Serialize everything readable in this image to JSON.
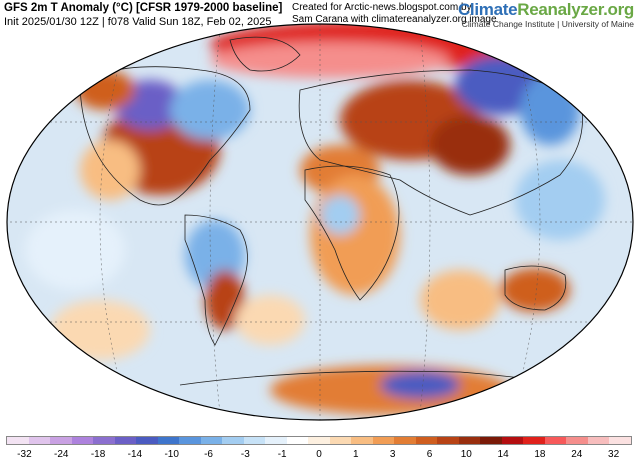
{
  "header": {
    "title": "GFS 2m T Anomaly (°C) [CFSR 1979-2000 baseline]",
    "subtitle": "Init 2025/01/30 12Z | f078 Valid Sun 18Z, Feb 02, 2025"
  },
  "credit": {
    "line1": "Created for Arctic-news.blogspot.com by",
    "line2": "Sam Carana with climatereanalyzer.org image"
  },
  "brand": {
    "name_part1": "Climate",
    "name_part2": "Reanalyzer.org",
    "subtitle": "Climate Change Institute | University of Maine"
  },
  "colorbar": {
    "colors": [
      "#f3e3f3",
      "#e0c4ec",
      "#c9a1e3",
      "#ad82dd",
      "#8b6fcf",
      "#6b5fc6",
      "#4b5bc1",
      "#3e75cc",
      "#5a95dd",
      "#7ab1e8",
      "#a3cdf1",
      "#c7e2f7",
      "#e5f1fb",
      "#ffffff",
      "#fdf0e0",
      "#fbd9b2",
      "#f8bd82",
      "#f19d55",
      "#e27d34",
      "#cf5e1f",
      "#b84315",
      "#992e0e",
      "#7a1a08",
      "#b40e10",
      "#e0211b",
      "#f7595a",
      "#f58e8c",
      "#f7bdbd",
      "#fbe1e1"
    ],
    "ticks": [
      "-32",
      "-24",
      "-18",
      "-14",
      "-10",
      "-6",
      "-3",
      "-1",
      "0",
      "1",
      "3",
      "6",
      "10",
      "14",
      "18",
      "24",
      "32"
    ]
  },
  "map": {
    "projection": "Winkel Tripel",
    "land_color": "#e9a46c",
    "ocean_color": "#d8e7f4"
  }
}
